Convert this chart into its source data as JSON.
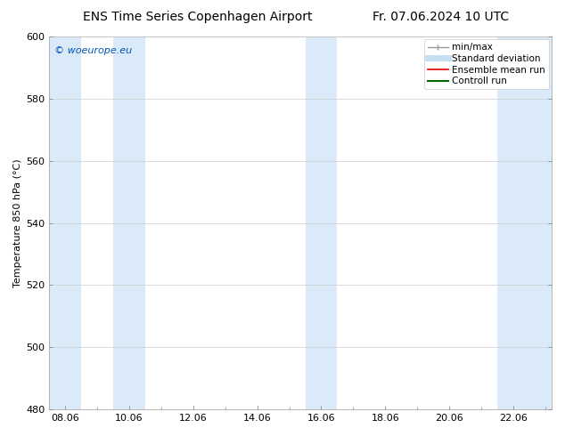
{
  "title_left": "ENS Time Series Copenhagen Airport",
  "title_right": "Fr. 07.06.2024 10 UTC",
  "ylabel": "Temperature 850 hPa (°C)",
  "ylim": [
    480,
    600
  ],
  "yticks": [
    480,
    500,
    520,
    540,
    560,
    580,
    600
  ],
  "xtick_labels": [
    "08.06",
    "10.06",
    "12.06",
    "14.06",
    "16.06",
    "18.06",
    "20.06",
    "22.06"
  ],
  "xtick_positions": [
    0,
    2,
    4,
    6,
    8,
    10,
    12,
    14
  ],
  "xlim": [
    -0.5,
    15.2
  ],
  "watermark": "© woeurope.eu",
  "watermark_color": "#0055bb",
  "bg_color": "#ffffff",
  "plot_bg_color": "#ffffff",
  "band_color": "#daeaf8",
  "shaded_bands": [
    {
      "x_start": -0.5,
      "x_end": 0.5
    },
    {
      "x_start": 1.5,
      "x_end": 2.5
    },
    {
      "x_start": 7.5,
      "x_end": 8.5
    },
    {
      "x_start": 13.5,
      "x_end": 15.2
    }
  ],
  "legend_items": [
    {
      "label": "min/max",
      "color": "#aaaaaa",
      "lw": 1.0
    },
    {
      "label": "Standard deviation",
      "color": "#c5dff0",
      "lw": 5
    },
    {
      "label": "Ensemble mean run",
      "color": "#dd0000",
      "lw": 1.2
    },
    {
      "label": "Controll run",
      "color": "#006600",
      "lw": 1.5
    }
  ],
  "title_fontsize": 10,
  "tick_fontsize": 8,
  "ylabel_fontsize": 8,
  "watermark_fontsize": 8,
  "legend_fontsize": 7.5
}
